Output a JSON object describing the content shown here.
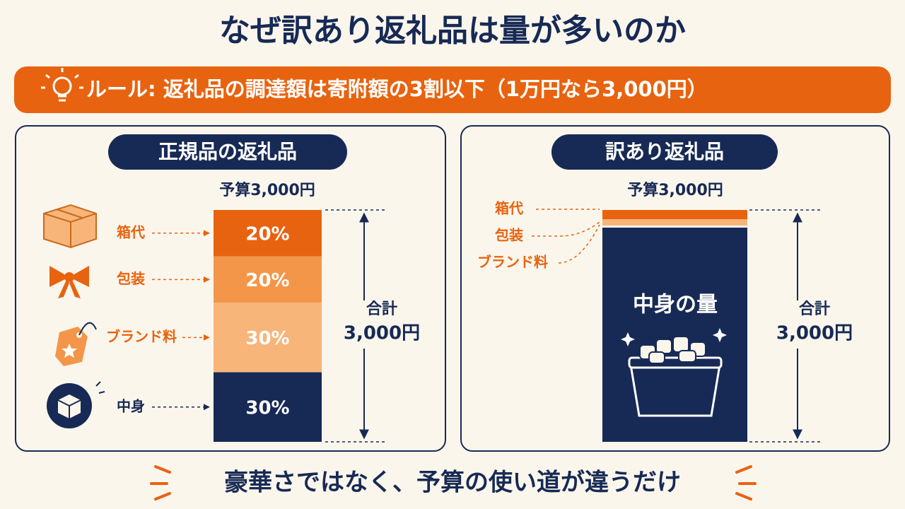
{
  "title": "なぜ訳あり返礼品は量が多いのか",
  "rule": "ルール: 返礼品の調達額は寄附額の3割以下（1万円なら3,000円）",
  "left_panel": {
    "heading": "正規品の返礼品",
    "budget": "予算3,000円",
    "segments": [
      {
        "label": "箱代",
        "value": 20,
        "value_label": "20%",
        "color": "#e8630f"
      },
      {
        "label": "包装",
        "value": 20,
        "value_label": "20%",
        "color": "#f4964a"
      },
      {
        "label": "ブランド料",
        "value": 30,
        "value_label": "30%",
        "color": "#f7b57a"
      },
      {
        "label": "中身",
        "value": 30,
        "value_label": "30%",
        "color": "#172a55"
      }
    ],
    "total_label": "合計",
    "total_value": "3,000円"
  },
  "right_panel": {
    "heading": "訳あり返礼品",
    "budget": "予算3,000円",
    "labels": [
      "箱代",
      "包装",
      "ブランド料"
    ],
    "content_label": "中身の量",
    "total_label": "合計",
    "total_value": "3,000円"
  },
  "footer": "豪華さではなく、予算の使い道が違うだけ"
}
